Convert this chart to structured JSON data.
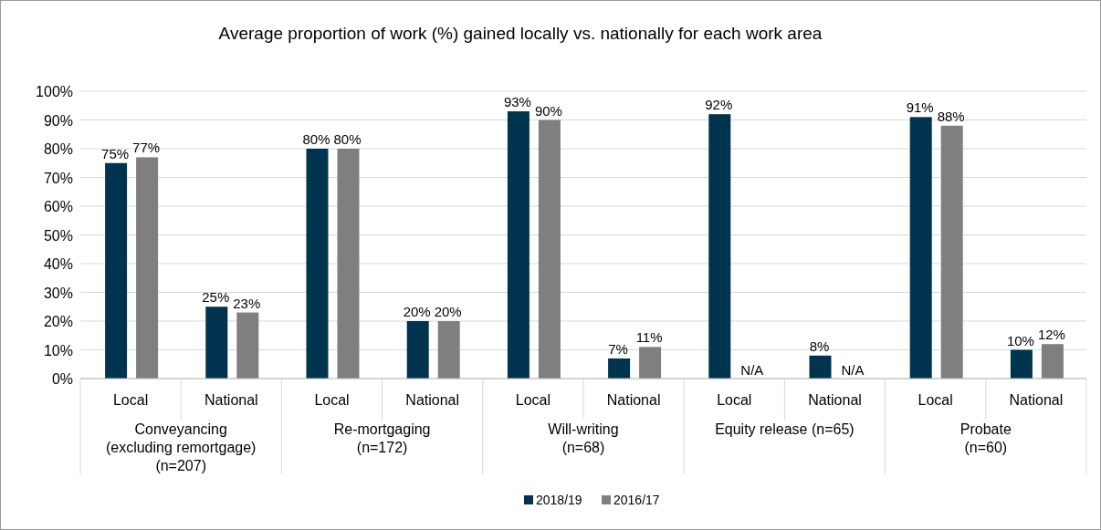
{
  "chart_data": {
    "type": "bar",
    "title": "Average proportion of work (%) gained locally vs. nationally for each work area",
    "categories": [
      "Local",
      "National",
      "Local",
      "National",
      "Local",
      "National",
      "Local",
      "National",
      "Local",
      "National"
    ],
    "series": [
      {
        "name": "2018/19",
        "color": "#00334e",
        "values": [
          75,
          25,
          80,
          20,
          93,
          7,
          92,
          8,
          91,
          10
        ],
        "value_labels": [
          "75%",
          "25%",
          "80%",
          "20%",
          "93%",
          "7%",
          "92%",
          "8%",
          "91%",
          "10%"
        ]
      },
      {
        "name": "2016/17",
        "color": "#7f7f7f",
        "values": [
          77,
          23,
          80,
          20,
          90,
          11,
          null,
          null,
          88,
          12
        ],
        "value_labels": [
          "77%",
          "23%",
          "80%",
          "20%",
          "90%",
          "11%",
          "N/A",
          "N/A",
          "88%",
          "12%"
        ]
      }
    ],
    "annotations": [
      "Conveyancing\n(excluding remortgage)\n(n=207)",
      "Re-mortgaging\n(n=172)",
      "Will-writing\n(n=68)",
      "Equity release (n=65)",
      "Probate\n(n=60)"
    ],
    "ylim": [
      0,
      100
    ],
    "yticks": [
      {
        "value": 0,
        "label": "0%"
      },
      {
        "value": 10,
        "label": "10%"
      },
      {
        "value": 20,
        "label": "20%"
      },
      {
        "value": 30,
        "label": "30%"
      },
      {
        "value": 40,
        "label": "40%"
      },
      {
        "value": 50,
        "label": "50%"
      },
      {
        "value": 60,
        "label": "60%"
      },
      {
        "value": 70,
        "label": "70%"
      },
      {
        "value": 80,
        "label": "80%"
      },
      {
        "value": 90,
        "label": "90%"
      },
      {
        "value": 100,
        "label": "100%"
      }
    ],
    "grid": "y",
    "legend": "bottom"
  }
}
